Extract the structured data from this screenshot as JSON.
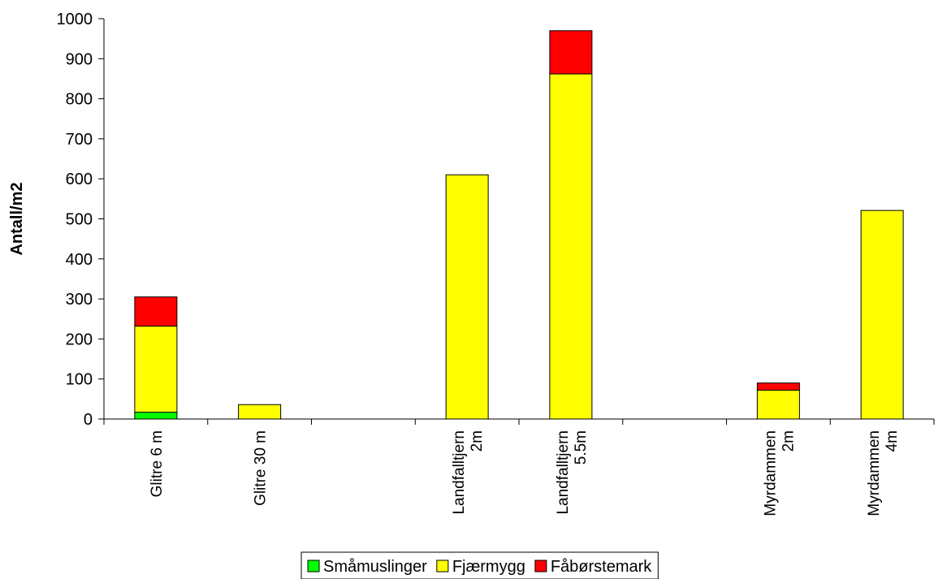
{
  "chart_data": {
    "type": "bar",
    "stacked": true,
    "title": "",
    "xlabel": "",
    "ylabel": "Antall/m2",
    "ylim": [
      0,
      1000
    ],
    "yticks": [
      0,
      100,
      200,
      300,
      400,
      500,
      600,
      700,
      800,
      900,
      1000
    ],
    "grid": false,
    "legend_position": "bottom",
    "categories": [
      [
        "Glitre 6 m"
      ],
      [
        "Glitre 30 m"
      ],
      [],
      [
        "Landfalltjern",
        "2m"
      ],
      [
        "Landfalltjern",
        "5.5m"
      ],
      [],
      [
        "Myrdammen",
        "2m"
      ],
      [
        "Myrdammen",
        "4m"
      ]
    ],
    "series": [
      {
        "name": "Småmuslinger",
        "color": "#00ff00",
        "values": [
          17,
          0,
          0,
          0,
          0,
          0,
          0,
          0
        ]
      },
      {
        "name": "Fjærmygg",
        "color": "#ffff00",
        "values": [
          215,
          36,
          0,
          610,
          862,
          0,
          72,
          521
        ]
      },
      {
        "name": "Fåbørstemark",
        "color": "#ff0000",
        "values": [
          73,
          0,
          0,
          0,
          108,
          0,
          18,
          0
        ]
      }
    ]
  }
}
